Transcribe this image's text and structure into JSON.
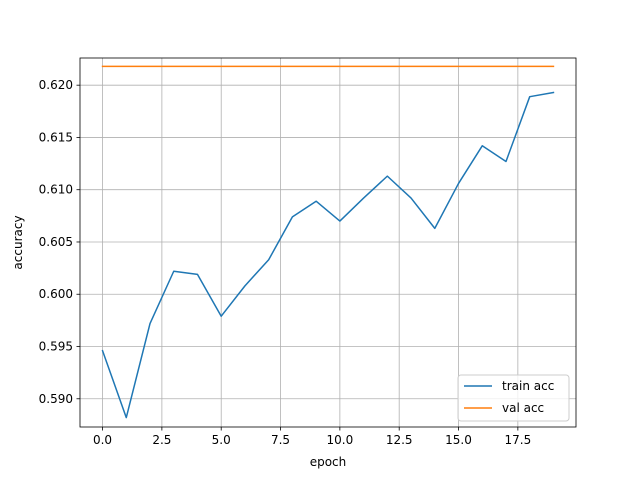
{
  "chart_data": {
    "type": "line",
    "title": "",
    "xlabel": "epoch",
    "ylabel": "accuracy",
    "xlim": [
      -0.95,
      19.95
    ],
    "ylim": [
      0.5873,
      0.6226
    ],
    "xticks": [
      0.0,
      2.5,
      5.0,
      7.5,
      10.0,
      12.5,
      15.0,
      17.5
    ],
    "xtick_labels": [
      "0.0",
      "2.5",
      "5.0",
      "7.5",
      "10.0",
      "12.5",
      "15.0",
      "17.5"
    ],
    "yticks": [
      0.59,
      0.595,
      0.6,
      0.605,
      0.61,
      0.615,
      0.62
    ],
    "ytick_labels": [
      "0.590",
      "0.595",
      "0.600",
      "0.605",
      "0.610",
      "0.615",
      "0.620"
    ],
    "grid": true,
    "legend_position": "bottom-right",
    "x": [
      0,
      1,
      2,
      3,
      4,
      5,
      6,
      7,
      8,
      9,
      10,
      11,
      12,
      13,
      14,
      15,
      16,
      17,
      18,
      19
    ],
    "series": [
      {
        "name": "train acc",
        "color": "#1f77b4",
        "values": [
          0.5946,
          0.5882,
          0.5972,
          0.6022,
          0.6019,
          0.5979,
          0.6008,
          0.6033,
          0.6074,
          0.6089,
          0.607,
          0.6092,
          0.6113,
          0.6092,
          0.6063,
          0.6106,
          0.6142,
          0.6127,
          0.6189,
          0.6193
        ]
      },
      {
        "name": "val acc",
        "color": "#ff7f0e",
        "values": [
          0.6218,
          0.6218,
          0.6218,
          0.6218,
          0.6218,
          0.6218,
          0.6218,
          0.6218,
          0.6218,
          0.6218,
          0.6218,
          0.6218,
          0.6218,
          0.6218,
          0.6218,
          0.6218,
          0.6218,
          0.6218,
          0.6218,
          0.6218
        ]
      }
    ]
  }
}
